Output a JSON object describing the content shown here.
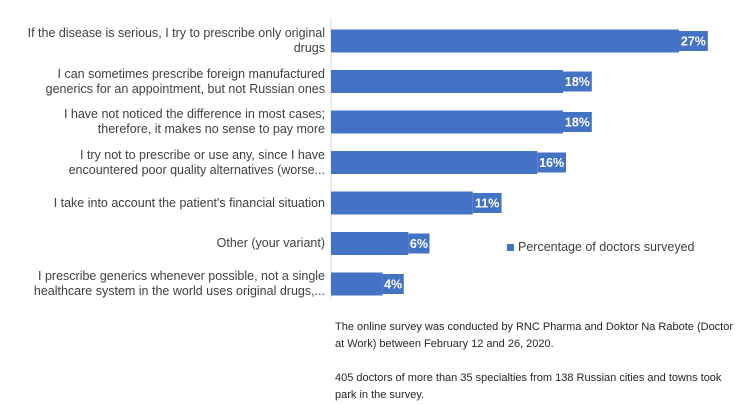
{
  "chart_data": {
    "type": "bar",
    "orientation": "horizontal",
    "categories": [
      [
        "If the disease is serious, I try to prescribe only original",
        "drugs"
      ],
      [
        "I can sometimes prescribe foreign manufactured",
        "generics for an appointment, but not Russian ones"
      ],
      [
        "I have not noticed the difference in most cases;",
        "therefore, it makes no sense to pay more"
      ],
      [
        "I try not to prescribe or use any, since I have",
        "encountered poor quality alternatives (worse..."
      ],
      [
        "I take into account the patient's financial situation"
      ],
      [
        "Other (your variant)"
      ],
      [
        "I prescribe generics whenever possible, not a single",
        "healthcare system in the world uses original drugs,..."
      ]
    ],
    "series": [
      {
        "name": "Percentage of doctors surveyed",
        "values": [
          27,
          18,
          18,
          16,
          11,
          6,
          4
        ],
        "labels": [
          "27%",
          "18%",
          "18%",
          "16%",
          "11%",
          "6%",
          "4%"
        ],
        "color": "#4472C4"
      }
    ],
    "xlim": [
      0,
      28
    ],
    "legend_position": "right",
    "grid": false
  },
  "legend": {
    "label": "Percentage of doctors surveyed"
  },
  "notes": [
    "The online survey was conducted by RNC Pharma and Doktor Na Rabote (Doctor at Work) between February 12 and 26, 2020.",
    "405 doctors of more than 35 specialties from 138 Russian cities and towns took park in the survey."
  ]
}
